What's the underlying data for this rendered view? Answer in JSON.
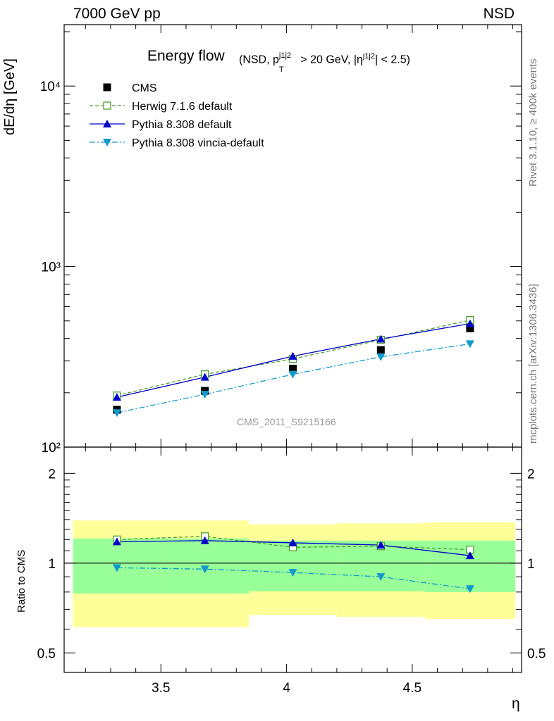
{
  "header": {
    "left_label": "7000 GeV pp",
    "right_label": "NSD"
  },
  "side_labels": {
    "rivet": "Rivet 3.1.10, ≥ 400k events",
    "mcplots": "mcplots.cern.ch [arXiv:1306.3436]"
  },
  "watermark": "CMS_2011_S9215166",
  "chart_data": {
    "type": "line",
    "title": "Energy flow",
    "title_detail": {
      "prefix": "(NSD, p",
      "sup1": "j1j2",
      "sub1": "T",
      "middle": " > 20 GeV, |η",
      "sup2": "j1j2",
      "suffix": "| < 2.5)"
    },
    "xlabel": "η",
    "ylabel": "dE/dη [GeV]",
    "ratio_ylabel": "Ratio to CMS",
    "xlim": [
      3.115,
      4.935
    ],
    "ylim": [
      100,
      20000
    ],
    "yscale": "log",
    "ratio_ylim": [
      0.43,
      2.45
    ],
    "ratio_yscale": "log",
    "x_ticks": [
      3.5,
      4,
      4.5
    ],
    "x_tick_labels": [
      "3.5",
      "4",
      "4.5"
    ],
    "y_ticks": [
      100,
      1000,
      10000
    ],
    "y_tick_labels": [
      "10²",
      "10³",
      "10⁴"
    ],
    "ratio_ticks": [
      0.5,
      1,
      2
    ],
    "ratio_tick_labels": [
      "0.5",
      "1",
      "2"
    ],
    "legend_position": "top-left",
    "bins": [
      [
        3.15,
        3.5
      ],
      [
        3.5,
        3.85
      ],
      [
        3.85,
        4.2
      ],
      [
        4.2,
        4.55
      ],
      [
        4.55,
        4.91
      ]
    ],
    "x": [
      3.325,
      3.675,
      4.025,
      4.375,
      4.73
    ],
    "series": [
      {
        "name": "CMS",
        "values": [
          161,
          205,
          272,
          345,
          455
        ],
        "color": "#000000",
        "marker": "square-filled",
        "line": "none"
      },
      {
        "name": "Herwig 7.1.6 default",
        "values": [
          193,
          253,
          308,
          393,
          505
        ],
        "ratio": [
          1.2,
          1.23,
          1.13,
          1.14,
          1.11
        ],
        "color": "#4aa02c",
        "marker": "square-open",
        "line": "dashed"
      },
      {
        "name": "Pythia 8.308 default",
        "values": [
          189,
          244,
          319,
          397,
          483
        ],
        "ratio": [
          1.18,
          1.19,
          1.17,
          1.15,
          1.06
        ],
        "color": "#0000cc",
        "marker": "triangle-up",
        "line": "solid"
      },
      {
        "name": "Pythia 8.308 vincia-default",
        "values": [
          155,
          196,
          253,
          316,
          373
        ],
        "ratio": [
          0.965,
          0.955,
          0.93,
          0.9,
          0.82
        ],
        "color": "#1199cc",
        "marker": "triangle-down",
        "line": "dashdot"
      }
    ],
    "uncertainty_bands": {
      "stat_sys_inner": {
        "color": "#99ff99",
        "low": [
          0.79,
          0.79,
          0.805,
          0.805,
          0.8
        ],
        "high": [
          1.21,
          1.21,
          1.19,
          1.19,
          1.19
        ]
      },
      "total_outer": {
        "color": "#ffff99",
        "low": [
          0.61,
          0.61,
          0.67,
          0.66,
          0.65
        ],
        "high": [
          1.39,
          1.39,
          1.35,
          1.36,
          1.37
        ]
      }
    }
  }
}
